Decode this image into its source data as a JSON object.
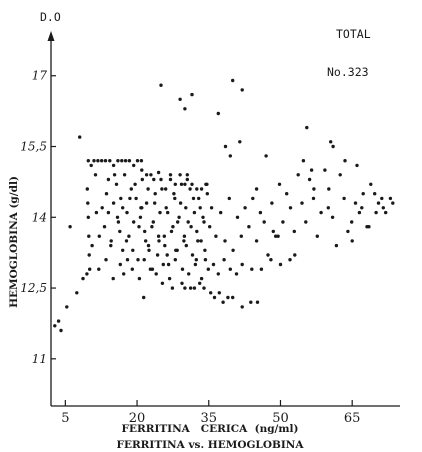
{
  "chart_data": {
    "type": "scatter",
    "title": "FERRITINA vs. HEMOGLOBINA",
    "xlabel": "FERRITINA   CERICA  (ng/ml)",
    "ylabel": "HEMOGLOBINA  (g/dl)",
    "y_axis_top_label": "D.O",
    "group_label": "TOTAL",
    "n_label": "No.323",
    "xlim": [
      2,
      75
    ],
    "ylim": [
      10,
      17.8
    ],
    "x_ticks": [
      5,
      20,
      35,
      50,
      65
    ],
    "x_tick_labels": [
      "5",
      "20",
      "35",
      "50",
      "65"
    ],
    "y_ticks": [
      11,
      12.5,
      14,
      15.5,
      17
    ],
    "y_tick_labels": [
      "11",
      "12,5",
      "14",
      "15,5",
      "17"
    ],
    "point_color": "#1a1a1a",
    "points": [
      [
        2.8,
        11.7
      ],
      [
        3.6,
        11.8
      ],
      [
        4.1,
        11.6
      ],
      [
        5.3,
        12.1
      ],
      [
        6,
        13.8
      ],
      [
        7.4,
        12.4
      ],
      [
        8,
        15.7
      ],
      [
        8.7,
        12.7
      ],
      [
        9.5,
        12.8
      ],
      [
        9.8,
        15.2
      ],
      [
        10.4,
        15.1
      ],
      [
        11,
        15.2
      ],
      [
        11.8,
        15.2
      ],
      [
        12.6,
        15.2
      ],
      [
        13.4,
        15.2
      ],
      [
        14.3,
        15.2
      ],
      [
        15.1,
        15.1
      ],
      [
        16,
        15.2
      ],
      [
        16.8,
        15.2
      ],
      [
        17.6,
        15.2
      ],
      [
        18.4,
        15.2
      ],
      [
        19.3,
        15.1
      ],
      [
        20.1,
        15.2
      ],
      [
        20.9,
        15.2
      ],
      [
        9.6,
        14.6
      ],
      [
        9.7,
        14.3
      ],
      [
        9.8,
        14
      ],
      [
        9.9,
        13.6
      ],
      [
        10,
        13.2
      ],
      [
        10.1,
        12.9
      ],
      [
        10.6,
        13.4
      ],
      [
        11.3,
        14.9
      ],
      [
        11.5,
        14.1
      ],
      [
        12.1,
        13.6
      ],
      [
        12.7,
        14.2
      ],
      [
        13.2,
        13.8
      ],
      [
        13.6,
        14.5
      ],
      [
        14,
        14.8
      ],
      [
        14.5,
        13.4
      ],
      [
        15.1,
        14.3
      ],
      [
        15.7,
        14.7
      ],
      [
        16.1,
        13.9
      ],
      [
        16.6,
        14.4
      ],
      [
        17,
        13.3
      ],
      [
        17.4,
        14.9
      ],
      [
        17.9,
        14.1
      ],
      [
        18.3,
        13.6
      ],
      [
        18.8,
        14.6
      ],
      [
        19.3,
        13.9
      ],
      [
        19.8,
        14.4
      ],
      [
        20.2,
        13.1
      ],
      [
        20.7,
        14
      ],
      [
        21.1,
        14.8
      ],
      [
        21.6,
        13.7
      ],
      [
        22,
        14.3
      ],
      [
        22.5,
        13.3
      ],
      [
        22.9,
        14.9
      ],
      [
        23.4,
        13.9
      ],
      [
        23.8,
        14.5
      ],
      [
        24.3,
        13.2
      ],
      [
        24.8,
        14.1
      ],
      [
        25.2,
        14.6
      ],
      [
        25.7,
        13.6
      ],
      [
        26.1,
        14.2
      ],
      [
        26.6,
        13
      ],
      [
        27,
        14.8
      ],
      [
        27.5,
        13.8
      ],
      [
        27.9,
        14.4
      ],
      [
        28.4,
        13.3
      ],
      [
        28.8,
        14
      ],
      [
        29.3,
        14.7
      ],
      [
        29.8,
        13.5
      ],
      [
        30.2,
        14.2
      ],
      [
        30.7,
        13.9
      ],
      [
        31.1,
        14.6
      ],
      [
        31.6,
        13.2
      ],
      [
        32,
        14.1
      ],
      [
        32.5,
        13.7
      ],
      [
        32.9,
        14.4
      ],
      [
        33.4,
        13.5
      ],
      [
        33.8,
        14
      ],
      [
        34.3,
        13.1
      ],
      [
        34.7,
        14.5
      ],
      [
        35.2,
        13.8
      ],
      [
        35.6,
        14.2
      ],
      [
        12,
        12.9
      ],
      [
        13.5,
        13.1
      ],
      [
        15,
        12.7
      ],
      [
        16.5,
        13
      ],
      [
        17.2,
        12.8
      ],
      [
        18,
        13.1
      ],
      [
        19,
        12.9
      ],
      [
        20.5,
        12.7
      ],
      [
        21.5,
        13.1
      ],
      [
        22.8,
        12.9
      ],
      [
        24,
        12.8
      ],
      [
        25.5,
        13
      ],
      [
        26.8,
        12.7
      ],
      [
        28,
        13.1
      ],
      [
        29.5,
        12.9
      ],
      [
        30.8,
        12.8
      ],
      [
        32.2,
        13
      ],
      [
        33.5,
        12.7
      ],
      [
        34.9,
        12.9
      ],
      [
        36,
        13
      ],
      [
        37,
        12.8
      ],
      [
        38.2,
        13.1
      ],
      [
        39.5,
        12.9
      ],
      [
        40.8,
        12.8
      ],
      [
        42,
        13
      ],
      [
        14,
        14.1
      ],
      [
        14.6,
        13.5
      ],
      [
        15.3,
        14.9
      ],
      [
        15.9,
        14
      ],
      [
        16.4,
        13.7
      ],
      [
        17,
        14.2
      ],
      [
        17.8,
        13.5
      ],
      [
        18.5,
        14.4
      ],
      [
        19.1,
        13.3
      ],
      [
        19.6,
        14.7
      ],
      [
        20.4,
        13.8
      ],
      [
        21,
        14.2
      ],
      [
        21.8,
        13.5
      ],
      [
        22.3,
        14.6
      ],
      [
        23.1,
        13.8
      ],
      [
        23.7,
        14.3
      ],
      [
        24.5,
        13.6
      ],
      [
        25,
        14.8
      ],
      [
        25.8,
        13.4
      ],
      [
        26.4,
        14.1
      ],
      [
        27.2,
        13.7
      ],
      [
        27.7,
        14.5
      ],
      [
        28.5,
        13.9
      ],
      [
        29.1,
        14.3
      ],
      [
        29.9,
        13.6
      ],
      [
        30.5,
        14.9
      ],
      [
        31.3,
        13.8
      ],
      [
        31.8,
        14.4
      ],
      [
        32.7,
        13.5
      ],
      [
        33.2,
        14.2
      ],
      [
        34,
        13.9
      ],
      [
        34.6,
        14.7
      ],
      [
        21,
        15
      ],
      [
        22,
        14.9
      ],
      [
        23.5,
        14.8
      ],
      [
        24.5,
        14.95
      ],
      [
        26,
        14.6
      ],
      [
        27,
        14.9
      ],
      [
        28,
        14.7
      ],
      [
        29,
        14.9
      ],
      [
        30,
        14.7
      ],
      [
        30.5,
        14.8
      ],
      [
        31.5,
        14.7
      ],
      [
        32.5,
        14.6
      ],
      [
        33.5,
        14.6
      ],
      [
        34.4,
        14.7
      ],
      [
        20.8,
        14.2
      ],
      [
        21.4,
        12.3
      ],
      [
        22.4,
        13.4
      ],
      [
        23.2,
        12.9
      ],
      [
        24.6,
        13.5
      ],
      [
        25.3,
        12.6
      ],
      [
        26.3,
        13.2
      ],
      [
        27.4,
        12.5
      ],
      [
        28.1,
        13.3
      ],
      [
        29.4,
        12.6
      ],
      [
        30.3,
        13.4
      ],
      [
        31.2,
        12.5
      ],
      [
        32.4,
        13.1
      ],
      [
        33.1,
        12.6
      ],
      [
        34.2,
        13.3
      ],
      [
        35.4,
        12.4
      ],
      [
        36.2,
        12.3
      ],
      [
        37.2,
        12.4
      ],
      [
        38,
        12.2
      ],
      [
        39,
        12.3
      ],
      [
        40,
        12.3
      ],
      [
        34,
        12.5
      ],
      [
        32,
        12.5
      ],
      [
        30,
        12.5
      ],
      [
        36.5,
        13.6
      ],
      [
        37.5,
        14.1
      ],
      [
        38.4,
        13.5
      ],
      [
        39.3,
        14.4
      ],
      [
        40.1,
        13.3
      ],
      [
        41,
        14
      ],
      [
        41.8,
        13.6
      ],
      [
        42.6,
        14.2
      ],
      [
        43.4,
        13.8
      ],
      [
        44.2,
        14.4
      ],
      [
        45,
        13.5
      ],
      [
        45.8,
        14.1
      ],
      [
        46.6,
        13.9
      ],
      [
        47.4,
        13.2
      ],
      [
        48.2,
        14.3
      ],
      [
        49,
        13.6
      ],
      [
        49.8,
        14.7
      ],
      [
        50.5,
        13.9
      ],
      [
        51.3,
        14.5
      ],
      [
        52.1,
        14.2
      ],
      [
        52.9,
        13.7
      ],
      [
        53.7,
        14.9
      ],
      [
        54.5,
        14.3
      ],
      [
        55.3,
        13.9
      ],
      [
        56.1,
        14.8
      ],
      [
        56.9,
        14.4
      ],
      [
        57.7,
        13.6
      ],
      [
        58.5,
        14.1
      ],
      [
        59.3,
        15
      ],
      [
        60.1,
        14.6
      ],
      [
        60.9,
        14
      ],
      [
        61.7,
        13.4
      ],
      [
        62.5,
        14.9
      ],
      [
        63.3,
        14.4
      ],
      [
        64.1,
        13.7
      ],
      [
        64.9,
        13.9
      ],
      [
        65.7,
        14.3
      ],
      [
        66.5,
        14.1
      ],
      [
        67.3,
        14.5
      ],
      [
        68.1,
        13.8
      ],
      [
        68.9,
        14.7
      ],
      [
        69.7,
        14.5
      ],
      [
        70.5,
        14.3
      ],
      [
        71.2,
        14.4
      ],
      [
        72,
        14.1
      ],
      [
        38.5,
        15.5
      ],
      [
        39.5,
        15.3
      ],
      [
        41.5,
        15.6
      ],
      [
        45,
        14.6
      ],
      [
        47,
        15.3
      ],
      [
        48.5,
        13.7
      ],
      [
        49.5,
        13.6
      ],
      [
        50,
        13
      ],
      [
        53,
        13.2
      ],
      [
        54.8,
        15.2
      ],
      [
        55.5,
        15.9
      ],
      [
        56.5,
        15
      ],
      [
        57,
        14.6
      ],
      [
        60,
        14.2
      ],
      [
        60.5,
        15.6
      ],
      [
        61,
        15.5
      ],
      [
        63.5,
        15.2
      ],
      [
        65,
        13.5
      ],
      [
        66,
        15.1
      ],
      [
        67,
        14.2
      ],
      [
        68.5,
        13.8
      ],
      [
        70,
        14.1
      ],
      [
        71.5,
        14.2
      ],
      [
        73,
        14.4
      ],
      [
        73.5,
        14.3
      ],
      [
        52,
        13.1
      ],
      [
        48,
        13.1
      ],
      [
        46,
        12.9
      ],
      [
        44,
        12.9
      ],
      [
        42,
        12.1
      ],
      [
        43.8,
        12.2
      ],
      [
        45.2,
        12.2
      ],
      [
        29,
        16.5
      ],
      [
        30,
        16.3
      ],
      [
        31.5,
        16.6
      ],
      [
        40,
        16.9
      ],
      [
        42,
        16.7
      ],
      [
        37,
        16.2
      ],
      [
        25,
        16.8
      ]
    ]
  }
}
